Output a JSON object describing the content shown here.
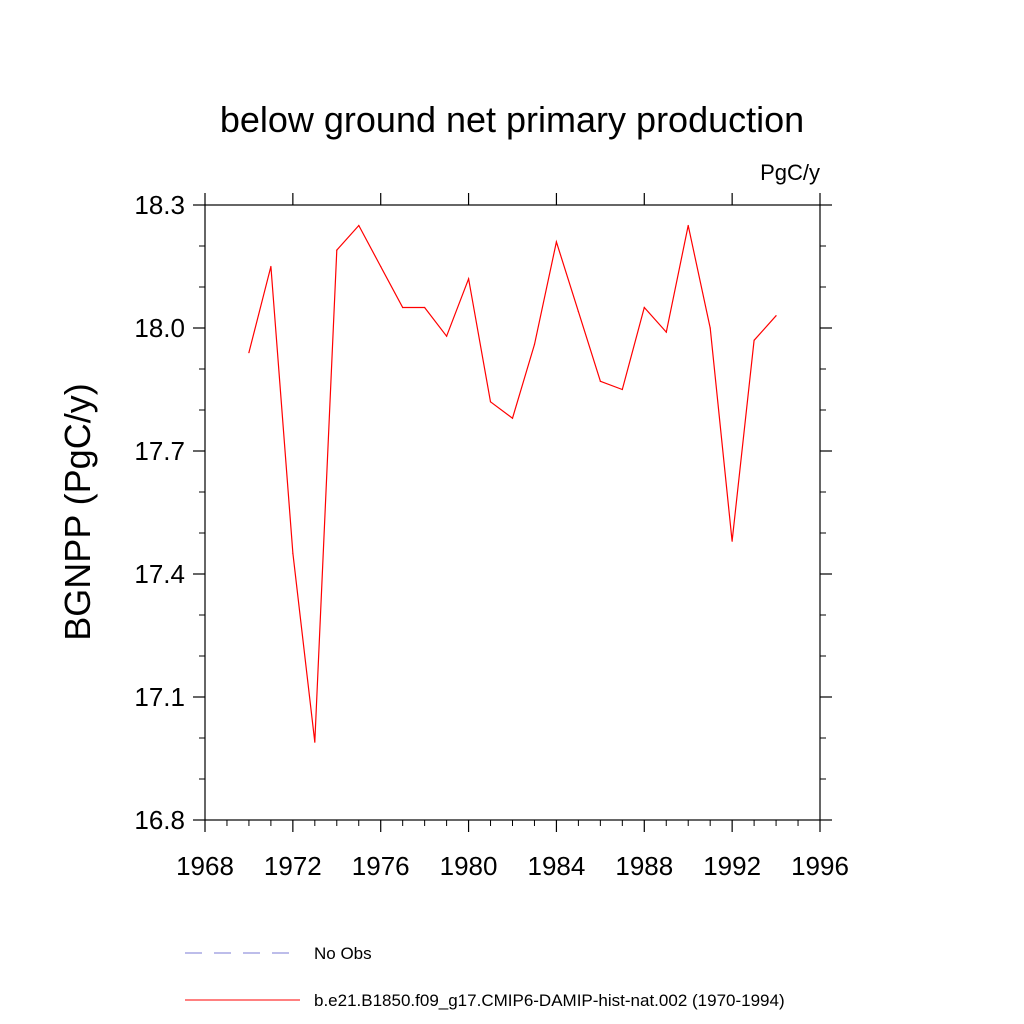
{
  "chart_data": {
    "type": "line",
    "title": "below ground net primary production",
    "units_label": "PgC/y",
    "xlabel": "",
    "ylabel": "BGNPP  (PgC/y)",
    "xlim": [
      1968,
      1996
    ],
    "ylim": [
      16.8,
      18.3
    ],
    "x_ticks": [
      "1968",
      "1972",
      "1976",
      "1980",
      "1984",
      "1988",
      "1992",
      "1996"
    ],
    "y_ticks": [
      "16.8",
      "17.1",
      "17.4",
      "17.7",
      "18.0",
      "18.3"
    ],
    "grid": false,
    "series": [
      {
        "name": "b.e21.B1850.f09_g17.CMIP6-DAMIP-hist-nat.002 (1970-1994)",
        "color": "#ff0000",
        "x": [
          1970,
          1971,
          1972,
          1973,
          1974,
          1975,
          1976,
          1977,
          1978,
          1979,
          1980,
          1981,
          1982,
          1983,
          1984,
          1985,
          1986,
          1987,
          1988,
          1989,
          1990,
          1991,
          1992,
          1993,
          1994
        ],
        "y": [
          17.94,
          18.15,
          17.45,
          16.99,
          18.19,
          18.25,
          18.15,
          18.05,
          18.05,
          17.98,
          18.12,
          17.82,
          17.78,
          17.96,
          18.21,
          18.04,
          17.87,
          17.85,
          18.05,
          17.99,
          18.25,
          18.0,
          17.48,
          17.97,
          18.03
        ]
      }
    ],
    "legend": {
      "position": "bottom",
      "items": [
        {
          "label": "No Obs",
          "style": "dashed",
          "color": "#7b7bd6"
        },
        {
          "label": "b.e21.B1850.f09_g17.CMIP6-DAMIP-hist-nat.002 (1970-1994)",
          "style": "solid",
          "color": "#ff0000"
        }
      ]
    }
  }
}
